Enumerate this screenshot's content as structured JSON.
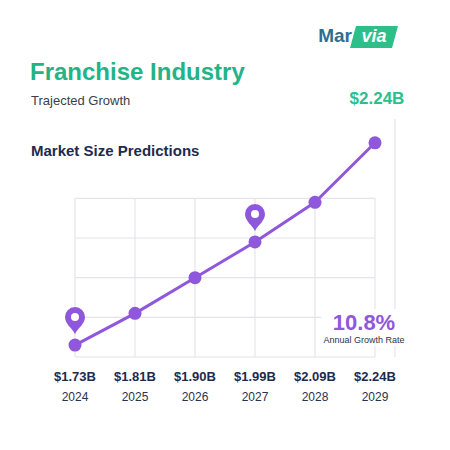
{
  "chart_data": {
    "type": "line",
    "brand": [
      "Mar",
      "via"
    ],
    "title": "Franchise Industry",
    "subtitle": "Trajected Growth",
    "section_title": "Market Size Predictions",
    "categories": [
      "2024",
      "2025",
      "2026",
      "2027",
      "2028",
      "2029"
    ],
    "values": [
      1.73,
      1.81,
      1.9,
      1.99,
      2.09,
      2.24
    ],
    "value_labels": [
      "$1.73B",
      "$1.81B",
      "$1.90B",
      "$1.99B",
      "$2.09B",
      "$2.24B"
    ],
    "color": "#8f57db",
    "marker": "circle",
    "line_style": "solid",
    "ylim": [
      1.7,
      2.3
    ],
    "yticks": [
      1.8,
      1.9,
      2.0,
      2.1
    ],
    "grid": true,
    "data_labels": true,
    "tick_labels": "x",
    "annotations": [
      "$2.24B",
      "10.8%",
      "Annual Growth Rate"
    ]
  }
}
